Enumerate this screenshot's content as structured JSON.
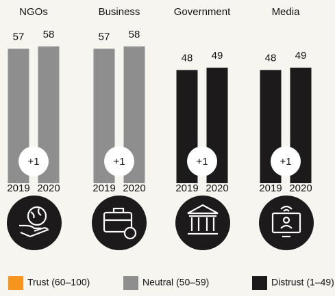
{
  "chart_data": {
    "type": "bar",
    "categories": [
      "NGOs",
      "Business",
      "Government",
      "Media"
    ],
    "series": [
      {
        "name": "2019",
        "values": [
          57,
          57,
          48,
          48
        ]
      },
      {
        "name": "2020",
        "values": [
          58,
          58,
          49,
          49
        ]
      }
    ],
    "category_colors": [
      "#8e8e8e",
      "#8e8e8e",
      "#1c1a1a",
      "#1c1a1a"
    ],
    "annotations": [
      "+1",
      "+1",
      "+1",
      "+1"
    ],
    "legend": [
      {
        "label": "Trust (60–100)",
        "color": "#f7941d"
      },
      {
        "label": "Neutral (50–59)",
        "color": "#8e8e8e"
      },
      {
        "label": "Distrust (1–49)",
        "color": "#1c1a1a"
      }
    ]
  }
}
